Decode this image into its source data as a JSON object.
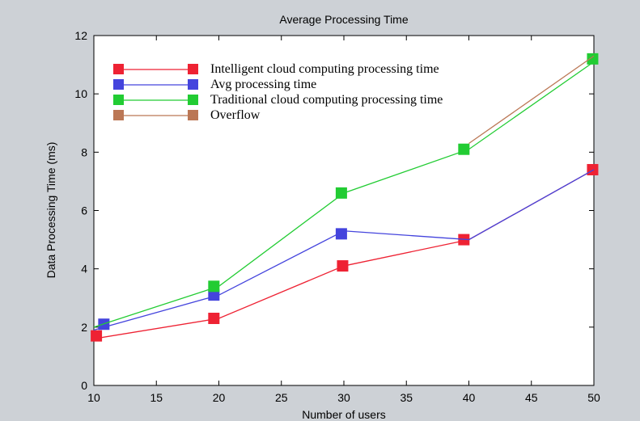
{
  "chart_data": {
    "type": "line",
    "title": "Average Processing Time",
    "xlabel": "Number of users",
    "ylabel": "Data Processing Time (ms)",
    "xlim": [
      10,
      50
    ],
    "ylim": [
      0,
      12
    ],
    "x_ticks": [
      10,
      15,
      20,
      25,
      30,
      35,
      40,
      45,
      50
    ],
    "y_ticks": [
      0,
      2,
      4,
      6,
      8,
      10,
      12
    ],
    "grid": false,
    "legend_position": "top-left",
    "series": [
      {
        "name": "Intelligent cloud computing processing time",
        "color": "#ee2233",
        "marker": "square",
        "points": [
          [
            10,
            1.6
          ],
          [
            20,
            2.3
          ],
          [
            30,
            4.1
          ],
          [
            40,
            5.0
          ],
          [
            50,
            7.4
          ]
        ],
        "marker_points": [
          [
            10.2,
            1.7
          ],
          [
            19.6,
            2.3
          ],
          [
            29.9,
            4.1
          ],
          [
            39.6,
            5.0
          ],
          [
            49.9,
            7.4
          ]
        ]
      },
      {
        "name": "Avg processing time",
        "color": "#4444dd",
        "marker": "square",
        "points": [
          [
            10,
            1.9
          ],
          [
            20,
            3.1
          ],
          [
            30,
            5.3
          ],
          [
            40,
            5.0
          ],
          [
            50,
            7.4
          ]
        ],
        "marker_points": [
          [
            10.8,
            2.1
          ],
          [
            19.6,
            3.1
          ],
          [
            29.8,
            5.2
          ]
        ]
      },
      {
        "name": "Traditional cloud computing processing time",
        "color": "#22cc33",
        "marker": "square",
        "points": [
          [
            10,
            2.0
          ],
          [
            20,
            3.4
          ],
          [
            30,
            6.6
          ],
          [
            40,
            8.1
          ],
          [
            50,
            11.1
          ]
        ],
        "marker_points": [
          [
            19.6,
            3.4
          ],
          [
            29.8,
            6.6
          ],
          [
            39.6,
            8.1
          ],
          [
            49.9,
            11.2
          ]
        ]
      },
      {
        "name": "Overflow",
        "color": "#bb7755",
        "marker": "square",
        "points": [
          [
            40,
            8.3
          ],
          [
            50,
            11.3
          ]
        ],
        "marker_points": []
      }
    ]
  }
}
